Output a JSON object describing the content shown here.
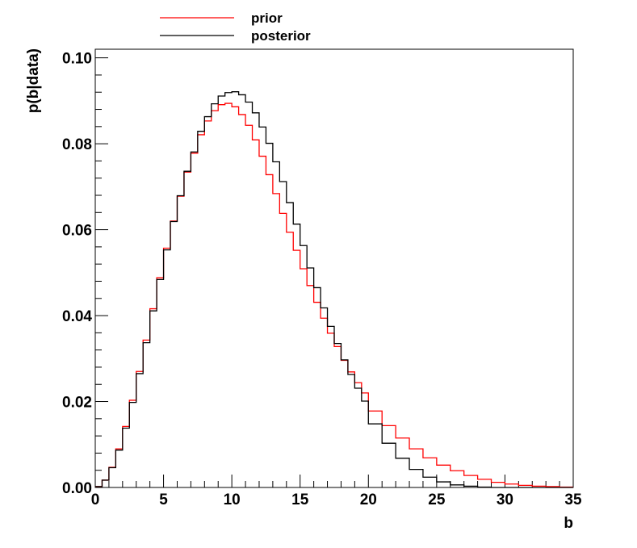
{
  "chart_data": {
    "type": "line",
    "step": true,
    "xlabel": "b",
    "ylabel": "p(b|data)",
    "xlim": [
      0,
      35
    ],
    "ylim": [
      0,
      0.102
    ],
    "grid": false,
    "legend_position": "top-left",
    "x_ticks": [
      {
        "value": 0,
        "label": "0"
      },
      {
        "value": 5,
        "label": "5"
      },
      {
        "value": 10,
        "label": "10"
      },
      {
        "value": 15,
        "label": "15"
      },
      {
        "value": 20,
        "label": "20"
      },
      {
        "value": 25,
        "label": "25"
      },
      {
        "value": 30,
        "label": "30"
      },
      {
        "value": 35,
        "label": "35"
      }
    ],
    "y_ticks": [
      {
        "value": 0,
        "label": "0.00"
      },
      {
        "value": 0.02,
        "label": "0.02"
      },
      {
        "value": 0.04,
        "label": "0.04"
      },
      {
        "value": 0.06,
        "label": "0.06"
      },
      {
        "value": 0.08,
        "label": "0.08"
      },
      {
        "value": 0.1,
        "label": "0.10"
      }
    ],
    "series": [
      {
        "name": "prior",
        "color": "#ff0000",
        "x": [
          0.5,
          1,
          1.5,
          2,
          2.5,
          3,
          3.5,
          4,
          4.5,
          5,
          5.5,
          6,
          6.5,
          7,
          7.5,
          8,
          8.5,
          9,
          9.5,
          10,
          10.5,
          11,
          11.5,
          12,
          12.5,
          13,
          13.5,
          14,
          14.5,
          15,
          15.5,
          16,
          16.5,
          17,
          17.5,
          18,
          18.5,
          19,
          19.5,
          20,
          21,
          22,
          23,
          24,
          25,
          26,
          27,
          28,
          29,
          30,
          31,
          32,
          33,
          34,
          35
        ],
        "values": [
          0.0002,
          0.0017,
          0.0047,
          0.009,
          0.0142,
          0.0203,
          0.027,
          0.0343,
          0.0416,
          0.0488,
          0.0557,
          0.062,
          0.0678,
          0.0734,
          0.0778,
          0.0821,
          0.0853,
          0.0877,
          0.0891,
          0.0894,
          0.0886,
          0.0868,
          0.0843,
          0.0809,
          0.0771,
          0.0728,
          0.0684,
          0.0638,
          0.0594,
          0.0552,
          0.0509,
          0.047,
          0.0431,
          0.0394,
          0.0359,
          0.0328,
          0.0296,
          0.0269,
          0.0244,
          0.022,
          0.0178,
          0.0144,
          0.0115,
          0.009,
          0.0069,
          0.0052,
          0.0039,
          0.0028,
          0.0019,
          0.0012,
          0.0008,
          0.0005,
          0.0003,
          0.0002,
          0.0001
        ]
      },
      {
        "name": "posterior",
        "color": "#000000",
        "x": [
          0.5,
          1,
          1.5,
          2,
          2.5,
          3,
          3.5,
          4,
          4.5,
          5,
          5.5,
          6,
          6.5,
          7,
          7.5,
          8,
          8.5,
          9,
          9.5,
          10,
          10.5,
          11,
          11.5,
          12,
          12.5,
          13,
          13.5,
          14,
          14.5,
          15,
          15.5,
          16,
          16.5,
          17,
          17.5,
          18,
          18.5,
          19,
          19.5,
          20,
          21,
          22,
          23,
          24,
          25,
          26,
          27,
          28,
          29,
          30,
          31,
          32,
          33,
          34,
          35
        ],
        "values": [
          0.0002,
          0.0017,
          0.0046,
          0.0087,
          0.0138,
          0.0198,
          0.0265,
          0.0337,
          0.0411,
          0.0484,
          0.0553,
          0.0619,
          0.0679,
          0.0736,
          0.0781,
          0.0829,
          0.0863,
          0.0893,
          0.0911,
          0.0919,
          0.0921,
          0.0914,
          0.0897,
          0.0872,
          0.0839,
          0.0801,
          0.0758,
          0.0712,
          0.0663,
          0.0613,
          0.0563,
          0.0511,
          0.0465,
          0.0418,
          0.0375,
          0.0335,
          0.0297,
          0.0263,
          0.0231,
          0.0201,
          0.0148,
          0.0103,
          0.0068,
          0.0042,
          0.0024,
          0.0013,
          0.0006,
          0.0003,
          0.0001,
          0.0,
          0.0,
          0.0,
          0.0,
          0.0,
          0.0
        ]
      }
    ]
  }
}
